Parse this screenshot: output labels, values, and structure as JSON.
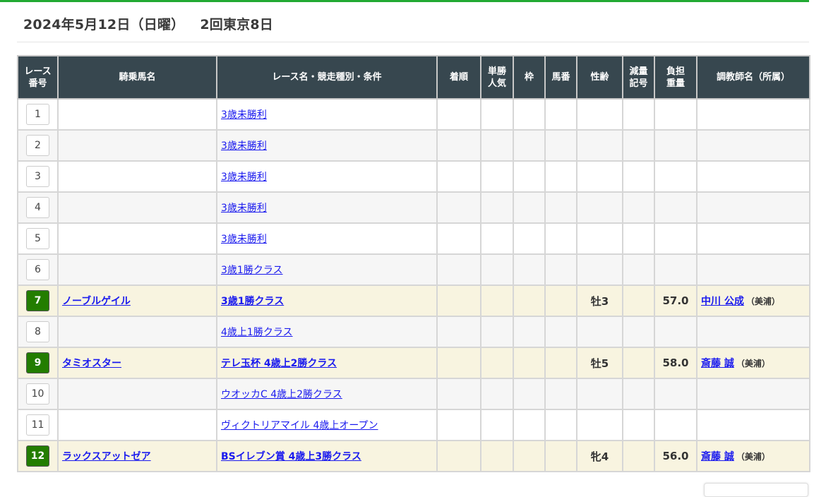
{
  "header": {
    "date": "2024年5月12日（日曜）",
    "meeting": "2回東京8日"
  },
  "accent": "#22aa33",
  "table": {
    "columns": [
      "レース番号",
      "騎乗馬名",
      "レース名・競走種別・条件",
      "着順",
      "単勝人気",
      "枠",
      "馬番",
      "性齢",
      "減量記号",
      "負担重量",
      "調教師名（所属）"
    ],
    "rows": [
      {
        "no": "1",
        "horse": "",
        "race": "3歳未勝利",
        "rank": "",
        "pop": "",
        "waku": "",
        "umaban": "",
        "sexage": "",
        "genryo": "",
        "weight": "",
        "trainer": "",
        "aff": ""
      },
      {
        "no": "2",
        "horse": "",
        "race": "3歳未勝利",
        "rank": "",
        "pop": "",
        "waku": "",
        "umaban": "",
        "sexage": "",
        "genryo": "",
        "weight": "",
        "trainer": "",
        "aff": ""
      },
      {
        "no": "3",
        "horse": "",
        "race": "3歳未勝利",
        "rank": "",
        "pop": "",
        "waku": "",
        "umaban": "",
        "sexage": "",
        "genryo": "",
        "weight": "",
        "trainer": "",
        "aff": ""
      },
      {
        "no": "4",
        "horse": "",
        "race": "3歳未勝利",
        "rank": "",
        "pop": "",
        "waku": "",
        "umaban": "",
        "sexage": "",
        "genryo": "",
        "weight": "",
        "trainer": "",
        "aff": ""
      },
      {
        "no": "5",
        "horse": "",
        "race": "3歳未勝利",
        "rank": "",
        "pop": "",
        "waku": "",
        "umaban": "",
        "sexage": "",
        "genryo": "",
        "weight": "",
        "trainer": "",
        "aff": ""
      },
      {
        "no": "6",
        "horse": "",
        "race": "3歳1勝クラス",
        "rank": "",
        "pop": "",
        "waku": "",
        "umaban": "",
        "sexage": "",
        "genryo": "",
        "weight": "",
        "trainer": "",
        "aff": ""
      },
      {
        "no": "7",
        "horse": "ノーブルゲイル",
        "race": "3歳1勝クラス",
        "rank": "",
        "pop": "",
        "waku": "",
        "umaban": "",
        "sexage": "牡3",
        "genryo": "",
        "weight": "57.0",
        "trainer": "中川 公成",
        "aff": "（美浦）"
      },
      {
        "no": "8",
        "horse": "",
        "race": "4歳上1勝クラス",
        "rank": "",
        "pop": "",
        "waku": "",
        "umaban": "",
        "sexage": "",
        "genryo": "",
        "weight": "",
        "trainer": "",
        "aff": ""
      },
      {
        "no": "9",
        "horse": "タミオスター",
        "race": "テレ玉杯 4歳上2勝クラス",
        "rank": "",
        "pop": "",
        "waku": "",
        "umaban": "",
        "sexage": "牡5",
        "genryo": "",
        "weight": "58.0",
        "trainer": "斎藤 誠",
        "aff": "（美浦）"
      },
      {
        "no": "10",
        "horse": "",
        "race": "ウオッカC 4歳上2勝クラス",
        "rank": "",
        "pop": "",
        "waku": "",
        "umaban": "",
        "sexage": "",
        "genryo": "",
        "weight": "",
        "trainer": "",
        "aff": ""
      },
      {
        "no": "11",
        "horse": "",
        "race": "ヴィクトリアマイル 4歳上オープン",
        "rank": "",
        "pop": "",
        "waku": "",
        "umaban": "",
        "sexage": "",
        "genryo": "",
        "weight": "",
        "trainer": "",
        "aff": ""
      },
      {
        "no": "12",
        "horse": "ラックスアットゼア",
        "race": "BSイレブン賞 4歳上3勝クラス",
        "rank": "",
        "pop": "",
        "waku": "",
        "umaban": "",
        "sexage": "牝4",
        "genryo": "",
        "weight": "56.0",
        "trainer": "斎藤 誠",
        "aff": "（美浦）"
      }
    ]
  }
}
